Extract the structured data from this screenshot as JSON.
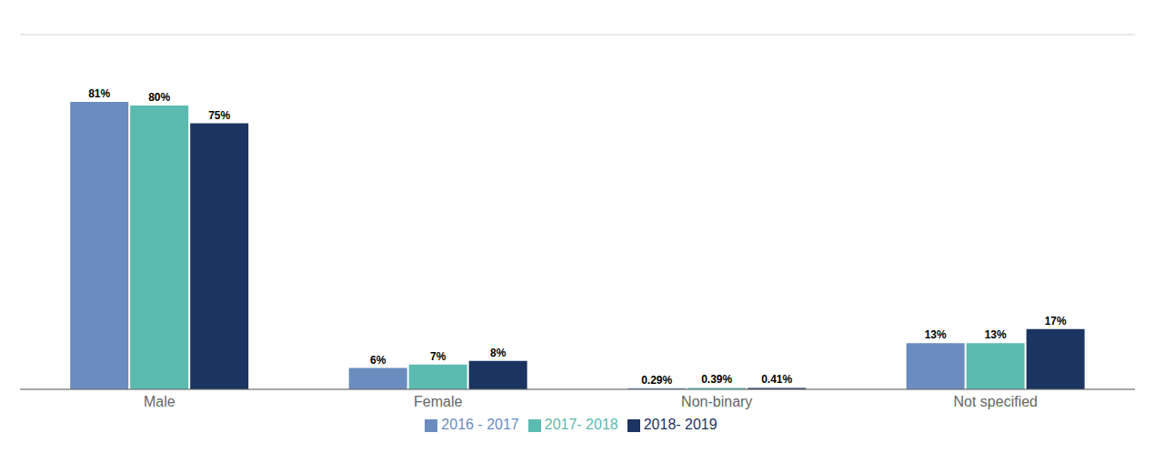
{
  "chart_data": {
    "type": "bar",
    "categories": [
      "Male",
      "Female",
      "Non-binary",
      "Not specified"
    ],
    "series": [
      {
        "name": "2016 - 2017",
        "color": "#6b8cbe",
        "values": [
          81,
          6,
          0.29,
          13
        ],
        "value_labels": [
          "81%",
          "6%",
          "0.29%",
          "13%"
        ]
      },
      {
        "name": "2017- 2018",
        "color": "#5bbbb0",
        "values": [
          80,
          7,
          0.39,
          13
        ],
        "value_labels": [
          "80%",
          "7%",
          "0.39%",
          "13%"
        ]
      },
      {
        "name": "2018- 2019",
        "color": "#1c3461",
        "values": [
          75,
          8,
          0.41,
          17
        ],
        "value_labels": [
          "75%",
          "8%",
          "0.41%",
          "17%"
        ]
      }
    ],
    "ylim": [
      0,
      100
    ],
    "yticks": [
      0,
      10,
      20,
      30,
      40,
      50,
      60,
      70,
      80,
      90,
      100
    ],
    "grid": true,
    "legend": "bottom",
    "data_labels": true,
    "tick_labels": "x"
  }
}
